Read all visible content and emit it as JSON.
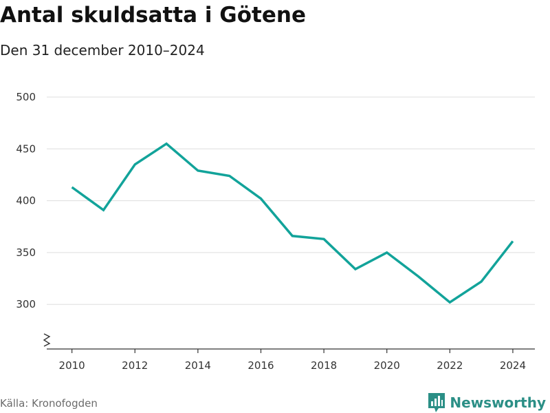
{
  "header": {
    "title": "Antal skuldsatta i Götene",
    "subtitle": "Den 31 december 2010–2024"
  },
  "footer": {
    "source": "Källa: Kronofogden",
    "brand": "Newsworthy",
    "brand_icon": "bar-chart-logo-icon"
  },
  "colors": {
    "line": "#12a39a",
    "grid": "#dddddd",
    "axis": "#333333",
    "brand": "#2b8f86"
  },
  "chart_data": {
    "type": "line",
    "title": "Antal skuldsatta i Götene",
    "subtitle": "Den 31 december 2010–2024",
    "xlabel": "",
    "ylabel": "",
    "x": [
      2010,
      2011,
      2012,
      2013,
      2014,
      2015,
      2016,
      2017,
      2018,
      2019,
      2020,
      2021,
      2022,
      2023,
      2024
    ],
    "series": [
      {
        "values": [
          413,
          391,
          435,
          455,
          429,
          424,
          402,
          366,
          363,
          334,
          350,
          327,
          302,
          322,
          361
        ]
      }
    ],
    "xticks": [
      "2010",
      "2012",
      "2014",
      "2016",
      "2018",
      "2020",
      "2022",
      "2024"
    ],
    "yticks": [
      "300",
      "350",
      "400",
      "450",
      "500"
    ],
    "ylim": [
      257,
      500
    ],
    "xlim": [
      2009.2,
      2024.7
    ],
    "y_axis_break": true,
    "grid": "horizontal",
    "legend": "none"
  }
}
